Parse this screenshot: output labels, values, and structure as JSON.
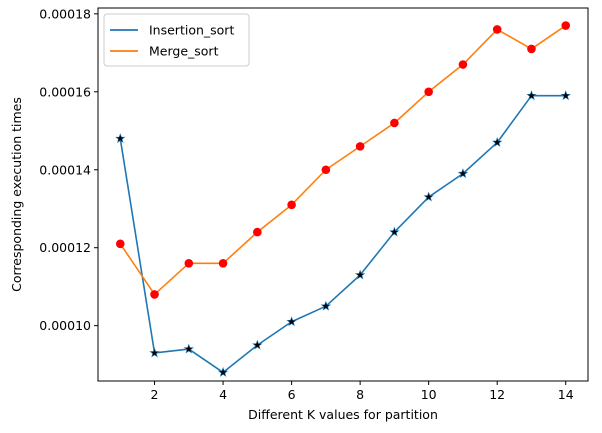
{
  "chart_data": {
    "type": "line",
    "xlabel": "Different K values for partition",
    "ylabel": "Corresponding execution times",
    "x": [
      1,
      2,
      3,
      4,
      5,
      6,
      7,
      8,
      9,
      10,
      11,
      12,
      13,
      14
    ],
    "xlim": [
      0.35,
      14.65
    ],
    "ylim": [
      8.58e-05,
      0.0001815
    ],
    "xticks": [
      2,
      4,
      6,
      8,
      10,
      12,
      14
    ],
    "yticks": [
      "0.00010",
      "0.00012",
      "0.00014",
      "0.00016",
      "0.00018"
    ],
    "grid": false,
    "legend_position": "upper-left",
    "series": [
      {
        "name": "Insertion_sort",
        "color": "#1f77b4",
        "marker": "star",
        "marker_color": "#000000",
        "values": [
          0.000148,
          9.3e-05,
          9.4e-05,
          8.8e-05,
          9.5e-05,
          0.000101,
          0.000105,
          0.000113,
          0.000124,
          0.000133,
          0.000139,
          0.000147,
          0.000159,
          0.000159
        ]
      },
      {
        "name": "Merge_sort",
        "color": "#ff7f0e",
        "marker": "circle",
        "marker_color": "#ff0000",
        "values": [
          0.000121,
          0.000108,
          0.000116,
          0.000116,
          0.000124,
          0.000131,
          0.00014,
          0.000146,
          0.000152,
          0.00016,
          0.000167,
          0.000176,
          0.000171,
          0.000177
        ]
      }
    ]
  }
}
